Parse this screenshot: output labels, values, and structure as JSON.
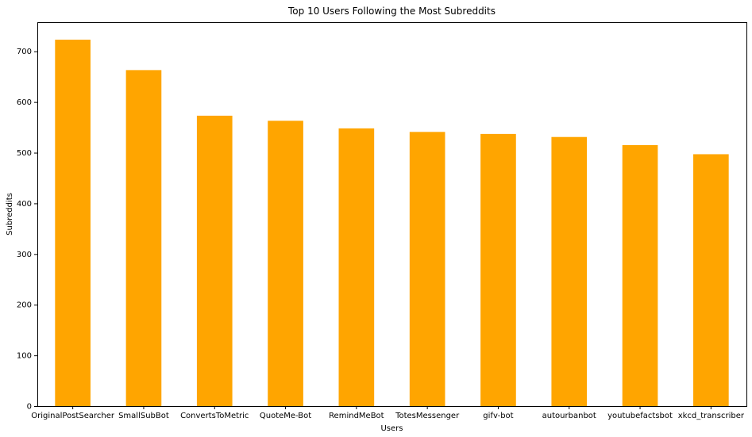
{
  "chart_data": {
    "type": "bar",
    "title": "Top 10 Users Following the Most Subreddits",
    "xlabel": "Users",
    "ylabel": "Subreddits",
    "categories": [
      "OriginalPostSearcher",
      "SmallSubBot",
      "ConvertsToMetric",
      "QuoteMe-Bot",
      "RemindMeBot",
      "TotesMessenger",
      "gifv-bot",
      "autourbanbot",
      "youtubefactsbot",
      "xkcd_transcriber"
    ],
    "values": [
      723,
      663,
      573,
      563,
      548,
      541,
      537,
      531,
      515,
      497
    ],
    "ylim": [
      0,
      757.5
    ],
    "yticks": [
      0,
      100,
      200,
      300,
      400,
      500,
      600,
      700
    ],
    "bar_color": "#ffa500",
    "grid": false,
    "legend": "none"
  }
}
